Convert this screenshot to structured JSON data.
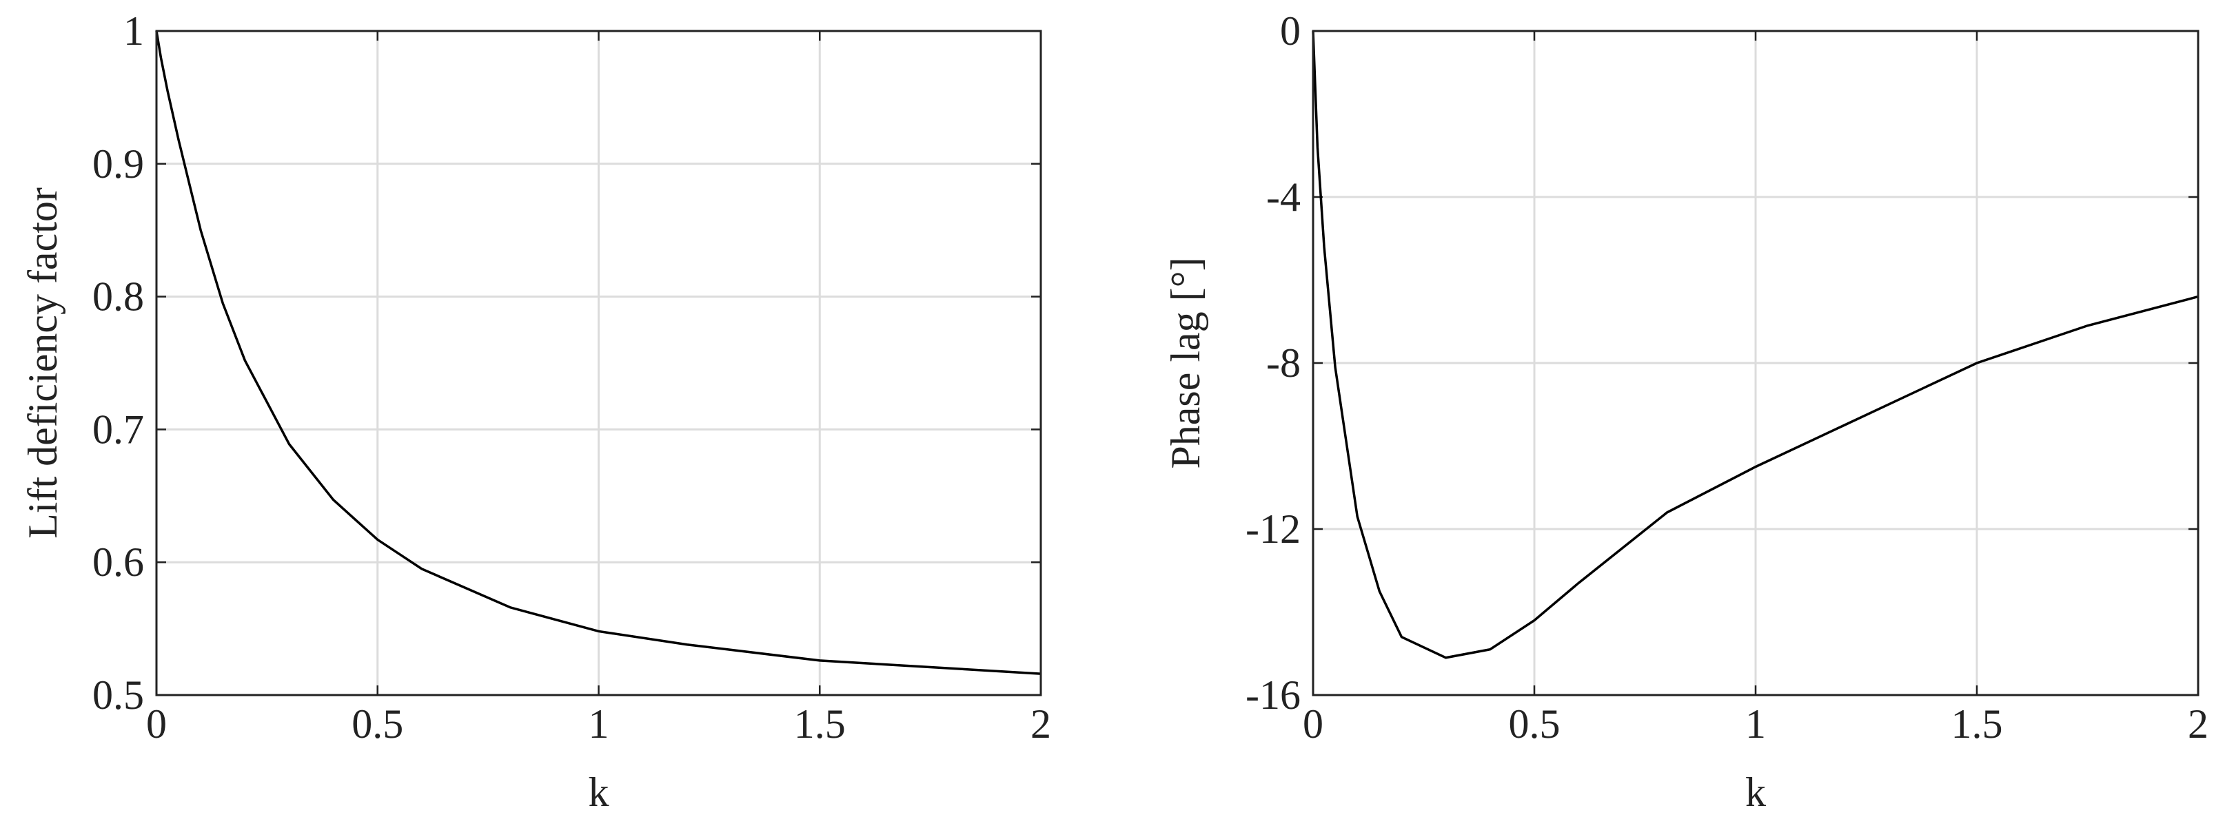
{
  "chart_data": [
    {
      "type": "line",
      "xlabel": "k",
      "ylabel": "Lift deficiency factor",
      "x": [
        0,
        0.01,
        0.025,
        0.05,
        0.1,
        0.15,
        0.2,
        0.3,
        0.4,
        0.5,
        0.6,
        0.8,
        1.0,
        1.2,
        1.5,
        1.75,
        2.0
      ],
      "series": [
        {
          "color": "#000000",
          "values": [
            1,
            0.98,
            0.955,
            0.918,
            0.85,
            0.795,
            0.752,
            0.689,
            0.647,
            0.617,
            0.595,
            0.566,
            0.548,
            0.538,
            0.526,
            0.521,
            0.516
          ]
        }
      ],
      "xlim": [
        0,
        2
      ],
      "xticks": [
        0,
        0.5,
        1,
        1.5,
        2
      ],
      "ylim": [
        0.5,
        1
      ],
      "yticks": [
        0.5,
        0.6,
        0.7,
        0.8,
        0.9,
        1
      ],
      "grid": true
    },
    {
      "type": "line",
      "xlabel": "k",
      "ylabel": "Phase lag [°]",
      "x": [
        0,
        0.01,
        0.025,
        0.05,
        0.1,
        0.15,
        0.2,
        0.3,
        0.4,
        0.5,
        0.6,
        0.8,
        1.0,
        1.2,
        1.5,
        1.75,
        2.0
      ],
      "series": [
        {
          "color": "#000000",
          "values": [
            0,
            -2.8,
            -5.2,
            -8.1,
            -11.7,
            -13.5,
            -14.6,
            -15.1,
            -14.9,
            -14.2,
            -13.3,
            -11.6,
            -10.5,
            -9.5,
            -8.0,
            -7.1,
            -6.4
          ]
        }
      ],
      "xlim": [
        0,
        2
      ],
      "xticks": [
        0,
        0.5,
        1,
        1.5,
        2
      ],
      "ylim": [
        -16,
        0
      ],
      "yticks": [
        -16,
        -12,
        -8,
        -4,
        0
      ],
      "grid": true
    }
  ]
}
